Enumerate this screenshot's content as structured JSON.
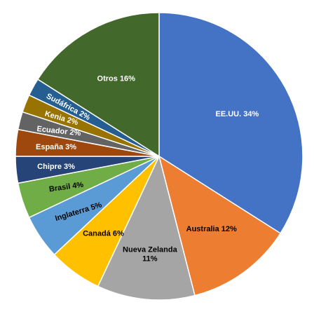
{
  "chart_data": {
    "type": "pie",
    "title": "",
    "start_angle_deg": 0,
    "direction": "clockwise",
    "legend": "none",
    "slices": [
      {
        "label": "EE.UU. 34%",
        "value": 34,
        "color": "#4472c4",
        "text_color": "#ffffff"
      },
      {
        "label": "Australia 12%",
        "value": 12,
        "color": "#ed7d31",
        "text_color": "#000000"
      },
      {
        "label": "Nueva Zelanda 11%",
        "label_lines": [
          "Nueva Zelanda",
          "11%"
        ],
        "value": 11,
        "color": "#a5a5a5",
        "text_color": "#000000"
      },
      {
        "label": "Canadá 6%",
        "value": 6,
        "color": "#ffc000",
        "text_color": "#000000"
      },
      {
        "label": "Inglaterra 5%",
        "value": 5,
        "color": "#5b9bd5",
        "text_color": "#000000"
      },
      {
        "label": "Brasil 4%",
        "value": 4,
        "color": "#70ad47",
        "text_color": "#000000"
      },
      {
        "label": "Chipre 3%",
        "value": 3,
        "color": "#264478",
        "text_color": "#ffffff"
      },
      {
        "label": "España 3%",
        "value": 3,
        "color": "#9e480e",
        "text_color": "#ffffff"
      },
      {
        "label": "Ecuador 2%",
        "value": 2,
        "color": "#636363",
        "text_color": "#ffffff"
      },
      {
        "label": "Kenia 2%",
        "value": 2,
        "color": "#997300",
        "text_color": "#ffffff"
      },
      {
        "label": "Sudáfrica 2%",
        "value": 2,
        "color": "#255e91",
        "text_color": "#ffffff"
      },
      {
        "label": "Otros 16%",
        "value": 16,
        "color": "#43682b",
        "text_color": "#ffffff"
      }
    ]
  }
}
